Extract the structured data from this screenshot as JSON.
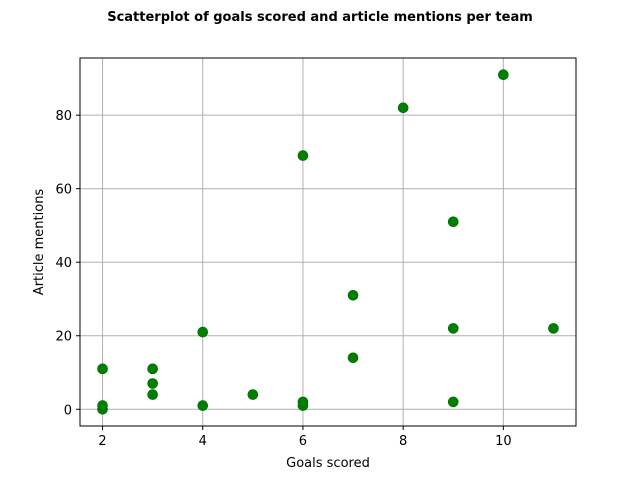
{
  "chart_data": {
    "type": "scatter",
    "title": "Scatterplot of goals scored and article mentions per team",
    "xlabel": "Goals scored",
    "ylabel": "Article mentions",
    "xlim": [
      1.55,
      11.45
    ],
    "ylim": [
      -4.55,
      95.55
    ],
    "xticks": [
      2,
      4,
      6,
      8,
      10
    ],
    "yticks": [
      0,
      20,
      40,
      60,
      80
    ],
    "grid": true,
    "marker_color": "#008000",
    "points": [
      {
        "x": 2,
        "y": 0
      },
      {
        "x": 2,
        "y": 1
      },
      {
        "x": 2,
        "y": 11
      },
      {
        "x": 3,
        "y": 4
      },
      {
        "x": 3,
        "y": 7
      },
      {
        "x": 3,
        "y": 11
      },
      {
        "x": 4,
        "y": 1
      },
      {
        "x": 4,
        "y": 21
      },
      {
        "x": 5,
        "y": 4
      },
      {
        "x": 6,
        "y": 1
      },
      {
        "x": 6,
        "y": 2
      },
      {
        "x": 6,
        "y": 69
      },
      {
        "x": 7,
        "y": 14
      },
      {
        "x": 7,
        "y": 31
      },
      {
        "x": 8,
        "y": 82
      },
      {
        "x": 9,
        "y": 2
      },
      {
        "x": 9,
        "y": 22
      },
      {
        "x": 9,
        "y": 51
      },
      {
        "x": 10,
        "y": 91
      },
      {
        "x": 11,
        "y": 22
      }
    ]
  }
}
